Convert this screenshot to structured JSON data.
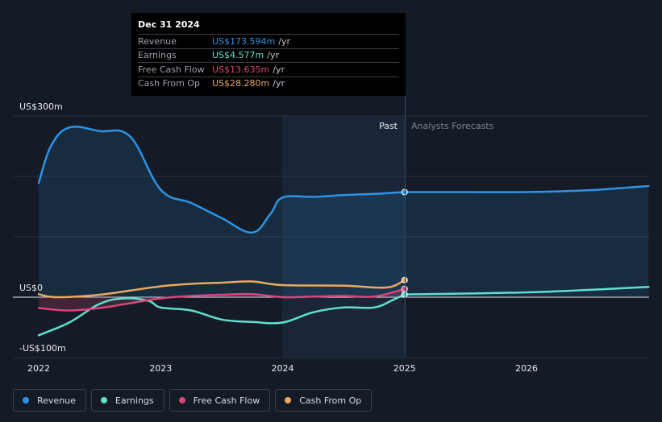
{
  "tooltip": {
    "date": "Dec 31 2024",
    "rows": [
      {
        "label": "Revenue",
        "value": "US$173.594m",
        "unit": "/yr"
      },
      {
        "label": "Earnings",
        "value": "US$4.577m",
        "unit": "/yr"
      },
      {
        "label": "Free Cash Flow",
        "value": "US$13.635m",
        "unit": "/yr"
      },
      {
        "label": "Cash From Op",
        "value": "US$28.280m",
        "unit": "/yr"
      }
    ]
  },
  "legend": [
    {
      "label": "Revenue"
    },
    {
      "label": "Earnings"
    },
    {
      "label": "Free Cash Flow"
    },
    {
      "label": "Cash From Op"
    }
  ],
  "colors": {
    "revenue": "#2e93e6",
    "earnings": "#5ee0cc",
    "free_cash_flow": "#d9467a",
    "cash_from_op": "#e8a95c",
    "background": "#151b26",
    "grid": "#2c333f"
  },
  "chart_data": {
    "type": "line",
    "title": "",
    "x_ticks": [
      "2022",
      "2023",
      "2024",
      "2025",
      "2026"
    ],
    "y_tick_labels": {
      "top": "US$300m",
      "zero": "US$0",
      "bottom": "-US$100m"
    },
    "ylim": [
      -100,
      300
    ],
    "xlim": [
      2022.0,
      2027.0
    ],
    "divider": {
      "x": 2025.0,
      "past_label": "Past",
      "forecast_label": "Analysts Forecasts"
    },
    "highlight_range": [
      2024.0,
      2025.0
    ],
    "series": [
      {
        "name": "Revenue",
        "key": "revenue",
        "area": true,
        "points": [
          [
            2022.0,
            189
          ],
          [
            2022.1,
            250
          ],
          [
            2022.25,
            281
          ],
          [
            2022.5,
            275
          ],
          [
            2022.75,
            266
          ],
          [
            2023.0,
            178
          ],
          [
            2023.25,
            156
          ],
          [
            2023.5,
            131
          ],
          [
            2023.75,
            107
          ],
          [
            2023.9,
            138
          ],
          [
            2024.0,
            165
          ],
          [
            2024.25,
            166
          ],
          [
            2024.5,
            169
          ],
          [
            2024.75,
            171
          ],
          [
            2025.0,
            174
          ]
        ],
        "forecast": [
          [
            2025.0,
            174
          ],
          [
            2025.5,
            174
          ],
          [
            2026.0,
            174
          ],
          [
            2026.5,
            177
          ],
          [
            2027.0,
            184
          ]
        ]
      },
      {
        "name": "Earnings",
        "key": "earnings",
        "area": false,
        "points": [
          [
            2022.0,
            -63
          ],
          [
            2022.25,
            -42
          ],
          [
            2022.5,
            -11
          ],
          [
            2022.7,
            -2
          ],
          [
            2022.9,
            -6
          ],
          [
            2023.0,
            -17
          ],
          [
            2023.25,
            -22
          ],
          [
            2023.5,
            -37
          ],
          [
            2023.75,
            -41
          ],
          [
            2024.0,
            -42
          ],
          [
            2024.25,
            -25
          ],
          [
            2024.5,
            -17
          ],
          [
            2024.75,
            -17
          ],
          [
            2024.9,
            -5
          ],
          [
            2025.0,
            4.6
          ]
        ],
        "forecast": [
          [
            2025.0,
            4.6
          ],
          [
            2025.5,
            6
          ],
          [
            2026.0,
            8
          ],
          [
            2026.5,
            12
          ],
          [
            2027.0,
            17
          ]
        ]
      },
      {
        "name": "Free Cash Flow",
        "key": "free_cash_flow",
        "area": true,
        "points": [
          [
            2022.0,
            -18
          ],
          [
            2022.25,
            -22
          ],
          [
            2022.5,
            -18
          ],
          [
            2022.75,
            -10
          ],
          [
            2023.0,
            -2
          ],
          [
            2023.25,
            2
          ],
          [
            2023.5,
            4
          ],
          [
            2023.75,
            5
          ],
          [
            2024.0,
            0
          ],
          [
            2024.25,
            1
          ],
          [
            2024.5,
            2
          ],
          [
            2024.75,
            1
          ],
          [
            2025.0,
            13.6
          ]
        ]
      },
      {
        "name": "Cash From Op",
        "key": "cash_from_op",
        "area": false,
        "points": [
          [
            2022.0,
            5
          ],
          [
            2022.15,
            0
          ],
          [
            2022.5,
            4
          ],
          [
            2022.75,
            11
          ],
          [
            2023.0,
            18
          ],
          [
            2023.25,
            22
          ],
          [
            2023.5,
            24
          ],
          [
            2023.75,
            26
          ],
          [
            2024.0,
            20
          ],
          [
            2024.5,
            19
          ],
          [
            2024.85,
            16
          ],
          [
            2025.0,
            28.3
          ]
        ]
      }
    ]
  }
}
